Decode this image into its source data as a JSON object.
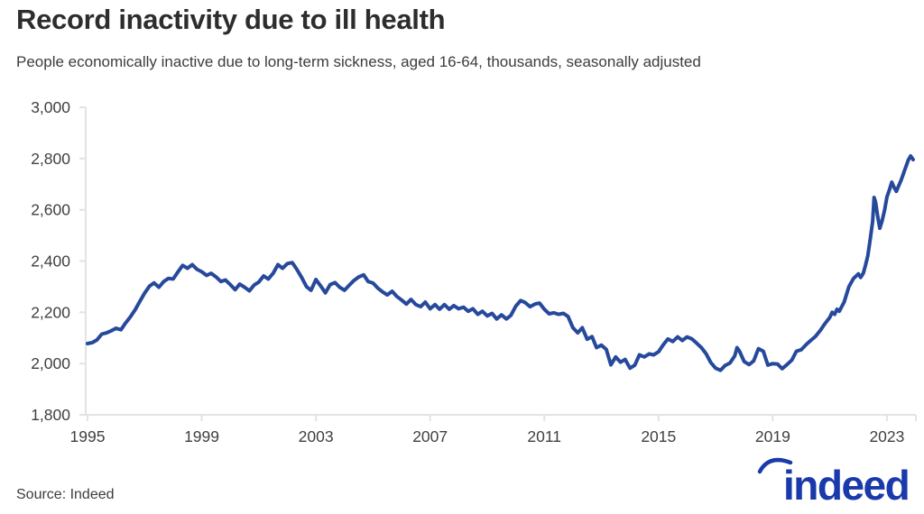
{
  "header": {
    "title": "Record inactivity due to ill health",
    "subtitle": "People economically inactive due to long-term sickness, aged 16-64, thousands, seasonally adjusted"
  },
  "footer": {
    "source_label": "Source: Indeed",
    "brand": "indeed"
  },
  "colors": {
    "line": "#26499B",
    "axis": "#e3e3e3",
    "tick_text": "#404040",
    "brand_blue": "#1A3AAB"
  },
  "chart_data": {
    "type": "line",
    "title": "Record inactivity due to ill health",
    "subtitle": "People economically inactive due to long-term sickness, aged 16-64, thousands, seasonally adjusted",
    "xlabel": "",
    "ylabel": "",
    "xlim": [
      1995,
      2024.2
    ],
    "ylim": [
      1800,
      3000
    ],
    "x_ticks": [
      1995,
      1999,
      2003,
      2007,
      2011,
      2015,
      2019,
      2023
    ],
    "y_ticks": [
      1800,
      2000,
      2200,
      2400,
      2600,
      2800,
      3000
    ],
    "grid": false,
    "legend_position": "none",
    "series": [
      {
        "name": "People economically inactive due to long-term sickness, aged 16-64, thousands, seasonally adjusted",
        "color": "#26499B",
        "points": [
          [
            1995.0,
            2078
          ],
          [
            1995.17,
            2082
          ],
          [
            1995.33,
            2092
          ],
          [
            1995.5,
            2115
          ],
          [
            1995.67,
            2120
          ],
          [
            1995.83,
            2128
          ],
          [
            1996.0,
            2138
          ],
          [
            1996.17,
            2132
          ],
          [
            1996.33,
            2158
          ],
          [
            1996.5,
            2182
          ],
          [
            1996.67,
            2210
          ],
          [
            1996.83,
            2242
          ],
          [
            1997.0,
            2275
          ],
          [
            1997.17,
            2302
          ],
          [
            1997.33,
            2315
          ],
          [
            1997.5,
            2298
          ],
          [
            1997.67,
            2320
          ],
          [
            1997.83,
            2332
          ],
          [
            1998.0,
            2330
          ],
          [
            1998.17,
            2358
          ],
          [
            1998.33,
            2383
          ],
          [
            1998.5,
            2372
          ],
          [
            1998.67,
            2386
          ],
          [
            1998.83,
            2368
          ],
          [
            1999.0,
            2358
          ],
          [
            1999.17,
            2344
          ],
          [
            1999.33,
            2352
          ],
          [
            1999.5,
            2338
          ],
          [
            1999.67,
            2320
          ],
          [
            1999.83,
            2326
          ],
          [
            2000.0,
            2308
          ],
          [
            2000.17,
            2288
          ],
          [
            2000.33,
            2310
          ],
          [
            2000.5,
            2298
          ],
          [
            2000.67,
            2284
          ],
          [
            2000.83,
            2306
          ],
          [
            2001.0,
            2318
          ],
          [
            2001.17,
            2342
          ],
          [
            2001.33,
            2330
          ],
          [
            2001.5,
            2352
          ],
          [
            2001.67,
            2386
          ],
          [
            2001.83,
            2372
          ],
          [
            2002.0,
            2390
          ],
          [
            2002.17,
            2394
          ],
          [
            2002.33,
            2368
          ],
          [
            2002.5,
            2336
          ],
          [
            2002.67,
            2300
          ],
          [
            2002.83,
            2286
          ],
          [
            2003.0,
            2328
          ],
          [
            2003.17,
            2302
          ],
          [
            2003.33,
            2276
          ],
          [
            2003.5,
            2308
          ],
          [
            2003.67,
            2316
          ],
          [
            2003.83,
            2298
          ],
          [
            2004.0,
            2286
          ],
          [
            2004.17,
            2306
          ],
          [
            2004.33,
            2324
          ],
          [
            2004.5,
            2338
          ],
          [
            2004.67,
            2346
          ],
          [
            2004.83,
            2320
          ],
          [
            2005.0,
            2314
          ],
          [
            2005.17,
            2294
          ],
          [
            2005.33,
            2280
          ],
          [
            2005.5,
            2268
          ],
          [
            2005.67,
            2282
          ],
          [
            2005.83,
            2262
          ],
          [
            2006.0,
            2248
          ],
          [
            2006.17,
            2232
          ],
          [
            2006.33,
            2250
          ],
          [
            2006.5,
            2230
          ],
          [
            2006.67,
            2222
          ],
          [
            2006.83,
            2240
          ],
          [
            2007.0,
            2214
          ],
          [
            2007.17,
            2230
          ],
          [
            2007.33,
            2212
          ],
          [
            2007.5,
            2230
          ],
          [
            2007.67,
            2212
          ],
          [
            2007.83,
            2226
          ],
          [
            2008.0,
            2214
          ],
          [
            2008.17,
            2220
          ],
          [
            2008.33,
            2204
          ],
          [
            2008.5,
            2214
          ],
          [
            2008.67,
            2192
          ],
          [
            2008.83,
            2204
          ],
          [
            2009.0,
            2186
          ],
          [
            2009.17,
            2196
          ],
          [
            2009.33,
            2174
          ],
          [
            2009.5,
            2190
          ],
          [
            2009.67,
            2174
          ],
          [
            2009.83,
            2188
          ],
          [
            2010.0,
            2224
          ],
          [
            2010.17,
            2246
          ],
          [
            2010.33,
            2238
          ],
          [
            2010.5,
            2222
          ],
          [
            2010.67,
            2232
          ],
          [
            2010.83,
            2236
          ],
          [
            2011.0,
            2212
          ],
          [
            2011.17,
            2194
          ],
          [
            2011.33,
            2198
          ],
          [
            2011.5,
            2192
          ],
          [
            2011.67,
            2196
          ],
          [
            2011.83,
            2184
          ],
          [
            2012.0,
            2140
          ],
          [
            2012.17,
            2120
          ],
          [
            2012.33,
            2140
          ],
          [
            2012.5,
            2095
          ],
          [
            2012.67,
            2105
          ],
          [
            2012.83,
            2062
          ],
          [
            2013.0,
            2072
          ],
          [
            2013.17,
            2055
          ],
          [
            2013.33,
            1995
          ],
          [
            2013.5,
            2026
          ],
          [
            2013.67,
            2005
          ],
          [
            2013.83,
            2016
          ],
          [
            2014.0,
            1982
          ],
          [
            2014.17,
            1994
          ],
          [
            2014.33,
            2034
          ],
          [
            2014.5,
            2026
          ],
          [
            2014.67,
            2038
          ],
          [
            2014.83,
            2034
          ],
          [
            2015.0,
            2046
          ],
          [
            2015.17,
            2074
          ],
          [
            2015.33,
            2096
          ],
          [
            2015.5,
            2086
          ],
          [
            2015.67,
            2104
          ],
          [
            2015.83,
            2090
          ],
          [
            2016.0,
            2104
          ],
          [
            2016.17,
            2096
          ],
          [
            2016.33,
            2080
          ],
          [
            2016.5,
            2062
          ],
          [
            2016.67,
            2038
          ],
          [
            2016.83,
            2004
          ],
          [
            2017.0,
            1982
          ],
          [
            2017.17,
            1974
          ],
          [
            2017.33,
            1992
          ],
          [
            2017.5,
            2002
          ],
          [
            2017.67,
            2030
          ],
          [
            2017.75,
            2062
          ],
          [
            2017.83,
            2050
          ],
          [
            2018.0,
            2008
          ],
          [
            2018.17,
            1996
          ],
          [
            2018.33,
            2010
          ],
          [
            2018.5,
            2058
          ],
          [
            2018.67,
            2048
          ],
          [
            2018.83,
            1994
          ],
          [
            2019.0,
            2000
          ],
          [
            2019.17,
            1998
          ],
          [
            2019.33,
            1980
          ],
          [
            2019.5,
            1996
          ],
          [
            2019.67,
            2014
          ],
          [
            2019.83,
            2048
          ],
          [
            2020.0,
            2054
          ],
          [
            2020.17,
            2074
          ],
          [
            2020.33,
            2090
          ],
          [
            2020.5,
            2106
          ],
          [
            2020.67,
            2130
          ],
          [
            2020.83,
            2156
          ],
          [
            2021.0,
            2180
          ],
          [
            2021.08,
            2200
          ],
          [
            2021.17,
            2192
          ],
          [
            2021.25,
            2212
          ],
          [
            2021.33,
            2204
          ],
          [
            2021.5,
            2240
          ],
          [
            2021.67,
            2300
          ],
          [
            2021.83,
            2332
          ],
          [
            2022.0,
            2350
          ],
          [
            2022.08,
            2336
          ],
          [
            2022.17,
            2352
          ],
          [
            2022.25,
            2384
          ],
          [
            2022.33,
            2420
          ],
          [
            2022.42,
            2490
          ],
          [
            2022.5,
            2555
          ],
          [
            2022.55,
            2648
          ],
          [
            2022.6,
            2630
          ],
          [
            2022.67,
            2578
          ],
          [
            2022.75,
            2528
          ],
          [
            2022.83,
            2556
          ],
          [
            2022.92,
            2600
          ],
          [
            2023.0,
            2650
          ],
          [
            2023.08,
            2676
          ],
          [
            2023.17,
            2708
          ],
          [
            2023.25,
            2688
          ],
          [
            2023.33,
            2672
          ],
          [
            2023.42,
            2696
          ],
          [
            2023.5,
            2716
          ],
          [
            2023.58,
            2742
          ],
          [
            2023.67,
            2770
          ],
          [
            2023.75,
            2794
          ],
          [
            2023.83,
            2810
          ],
          [
            2023.92,
            2796
          ]
        ]
      }
    ]
  }
}
